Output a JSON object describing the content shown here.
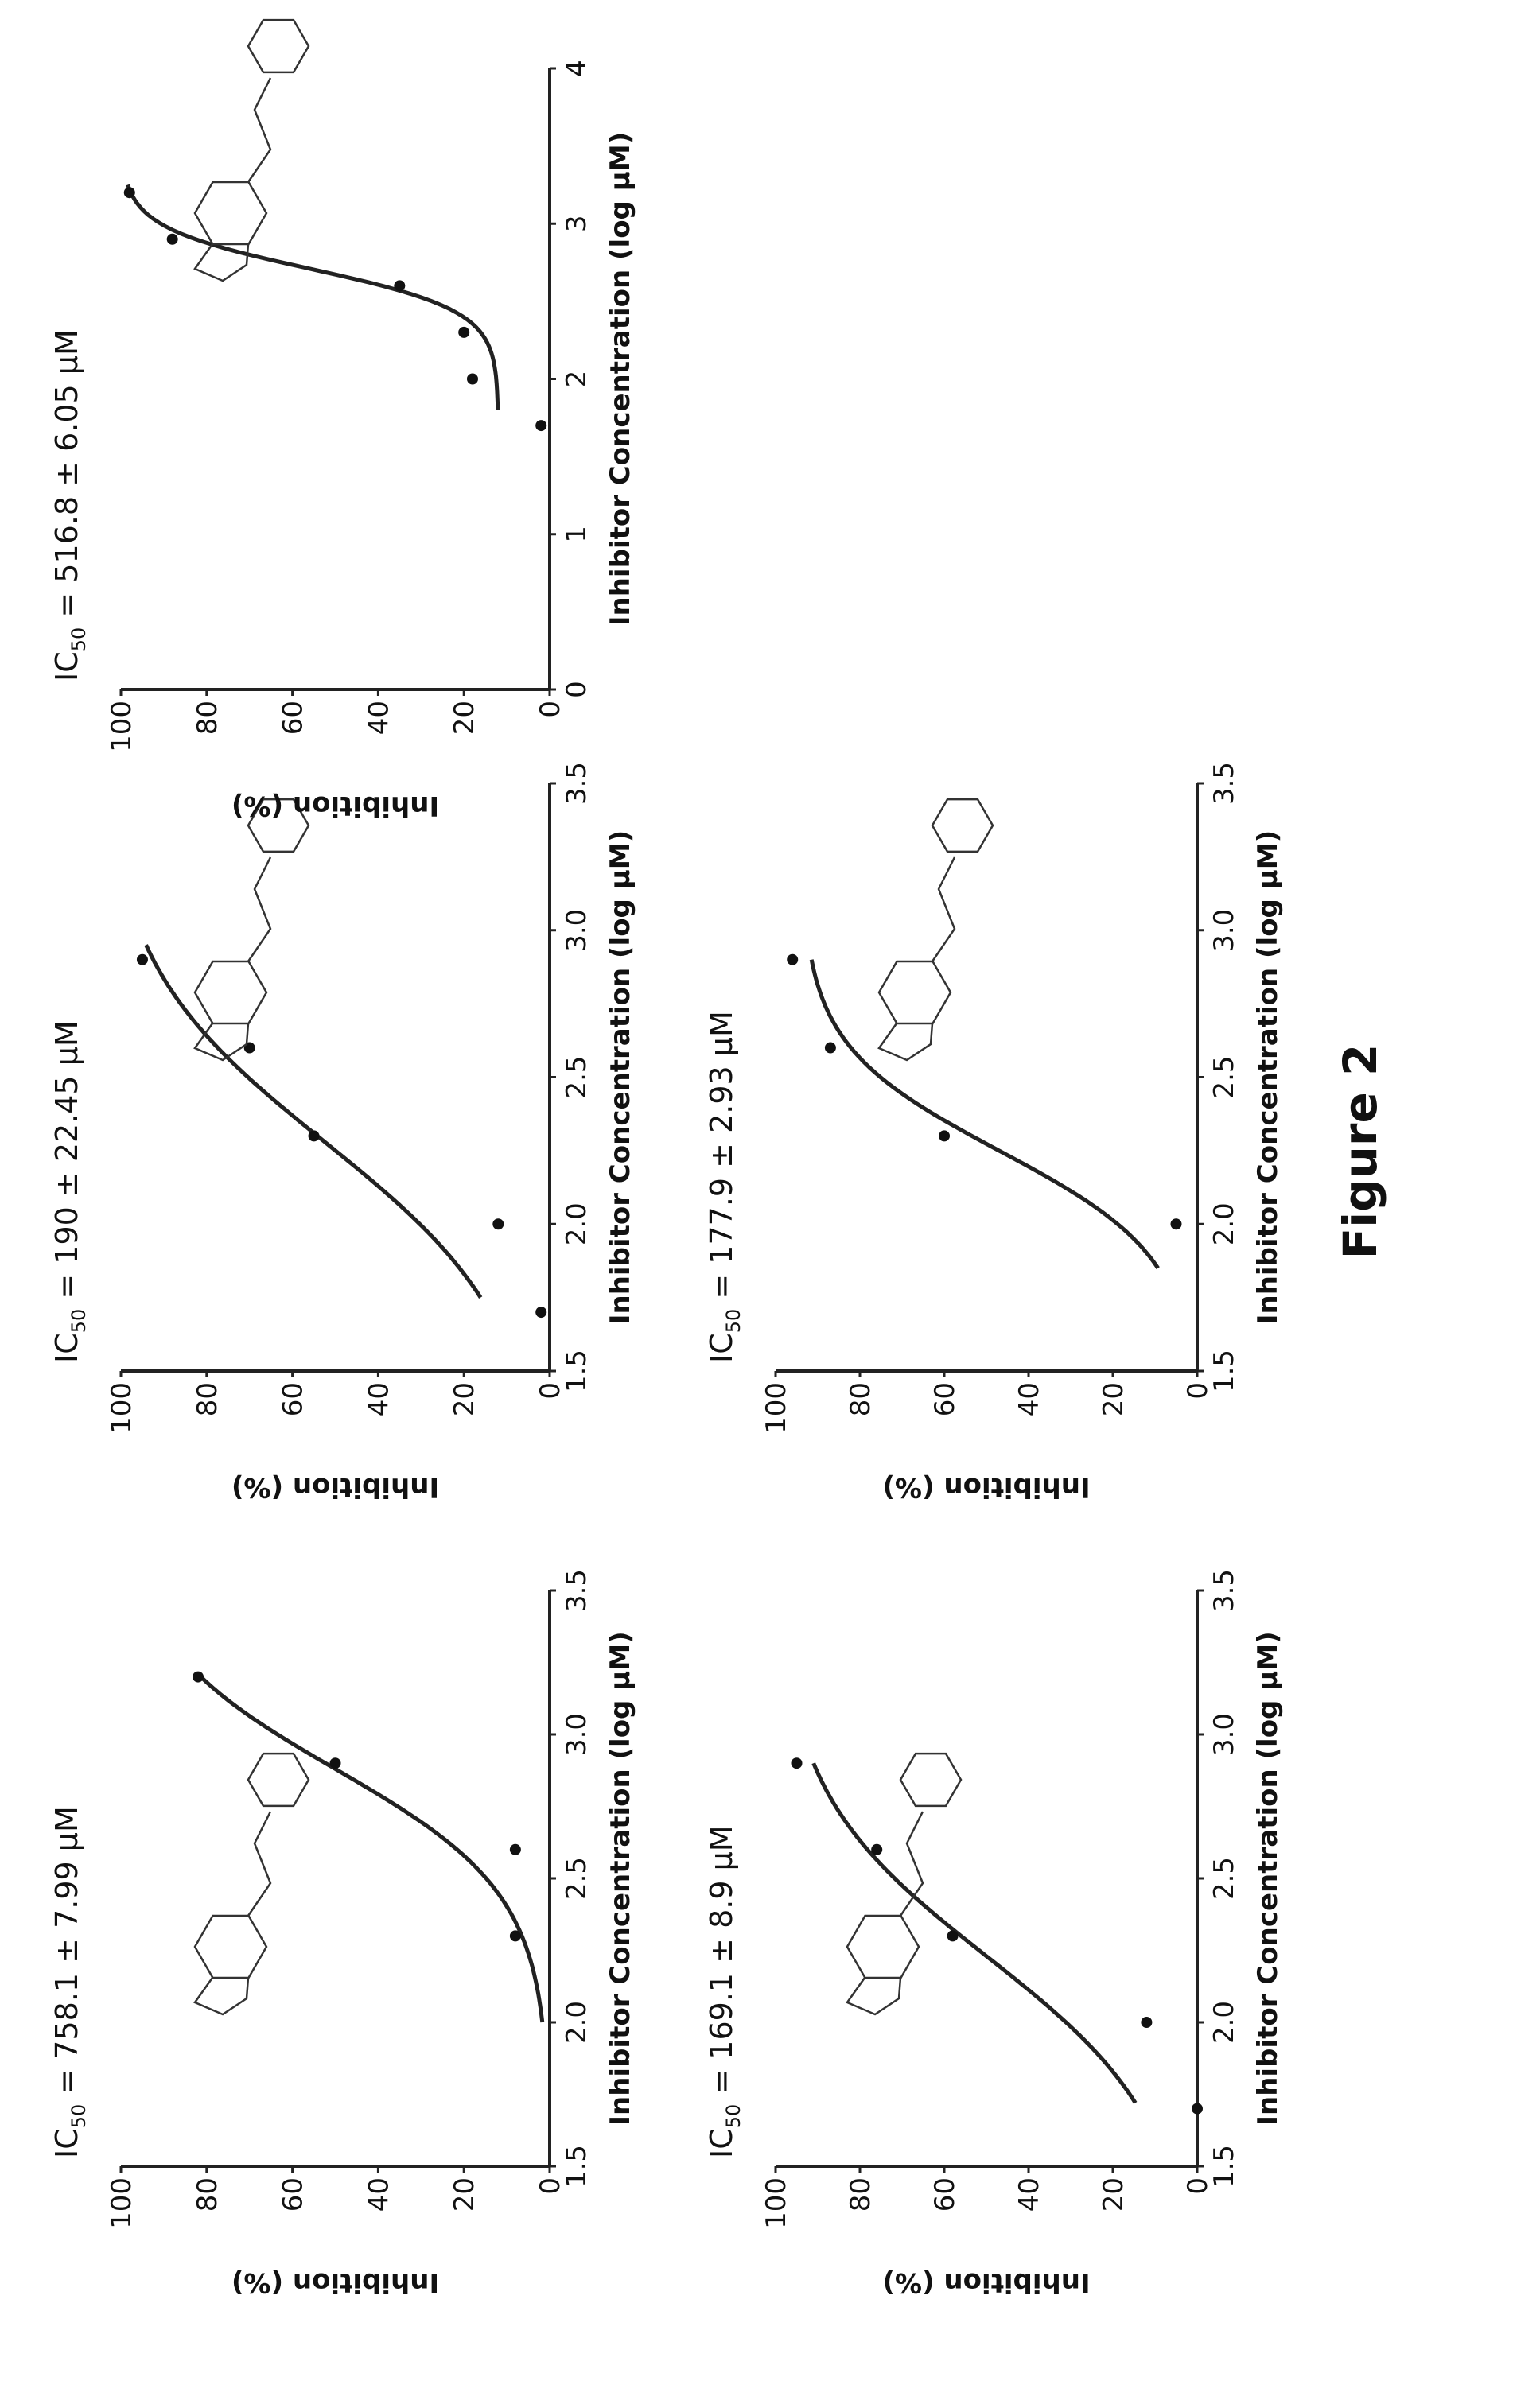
{
  "figure_label": "Figure 2",
  "chart_data": [
    {
      "type": "scatter",
      "title": "IC50 = 758.1 ± 7.99 µM",
      "title_main": "IC",
      "title_sub": "50",
      "title_rest": " = 758.1 ± 7.99 µM",
      "xlabel": "Inhibitor Concentration (log µM)",
      "ylabel": "Inhibition (%)",
      "xlim": [
        1.5,
        3.5
      ],
      "ylim": [
        0,
        100
      ],
      "xticks": [
        "1.5",
        "2.0",
        "2.5",
        "3.0",
        "3.5"
      ],
      "yticks": [
        "0",
        "20",
        "40",
        "60",
        "80",
        "100"
      ],
      "x": [
        2.3,
        2.6,
        2.9,
        3.2
      ],
      "y": [
        8,
        8,
        50,
        82
      ],
      "fit": {
        "log_ic50": 2.88,
        "hill": 2.0,
        "top": 100,
        "range": [
          2.0,
          3.2
        ]
      }
    },
    {
      "type": "scatter",
      "title": "IC50 = 190 ± 22.45 µM",
      "title_main": "IC",
      "title_sub": "50",
      "title_rest": " = 190 ± 22.45 µM",
      "xlabel": "Inhibitor Concentration (log µM)",
      "ylabel": "Inhibition (%)",
      "xlim": [
        1.5,
        3.5
      ],
      "ylim": [
        0,
        100
      ],
      "xticks": [
        "1.5",
        "2.0",
        "2.5",
        "3.0",
        "3.5"
      ],
      "yticks": [
        "0",
        "20",
        "40",
        "60",
        "80",
        "100"
      ],
      "x": [
        1.7,
        2.0,
        2.3,
        2.6,
        2.9
      ],
      "y": [
        2,
        12,
        55,
        70,
        95
      ],
      "fit": {
        "log_ic50": 2.28,
        "hill": 1.4,
        "top": 105,
        "range": [
          1.75,
          2.95
        ]
      }
    },
    {
      "type": "scatter",
      "title": "IC50 = 516.8 ± 6.05 µM",
      "title_main": "IC",
      "title_sub": "50",
      "title_rest": " = 516.8 ± 6.05 µM",
      "xlabel": "Inhibitor Concentration (log µM)",
      "ylabel": "Inhibition (%)",
      "xlim": [
        0,
        4
      ],
      "ylim": [
        0,
        100
      ],
      "xticks": [
        "0",
        "1",
        "2",
        "3",
        "4"
      ],
      "yticks": [
        "0",
        "20",
        "40",
        "60",
        "80",
        "100"
      ],
      "x": [
        1.7,
        2.0,
        2.3,
        2.6,
        2.9,
        3.2
      ],
      "y": [
        2,
        18,
        20,
        35,
        88,
        98
      ],
      "fit": {
        "log_ic50": 2.71,
        "hill": 3.2,
        "top": 100,
        "range": [
          1.8,
          3.25
        ],
        "bottom": 12
      }
    },
    {
      "type": "scatter",
      "title": "IC50 = 169.1 ± 8.9 µM",
      "title_main": "IC",
      "title_sub": "50",
      "title_rest": " = 169.1 ± 8.9 µM",
      "xlabel": "Inhibitor Concentration (log µM)",
      "ylabel": "Inhibition (%)",
      "xlim": [
        1.5,
        3.5
      ],
      "ylim": [
        0,
        100
      ],
      "xticks": [
        "1.5",
        "2.0",
        "2.5",
        "3.0",
        "3.5"
      ],
      "yticks": [
        "0",
        "20",
        "40",
        "60",
        "80",
        "100"
      ],
      "x": [
        1.7,
        2.0,
        2.3,
        2.6,
        2.9
      ],
      "y": [
        0,
        12,
        58,
        76,
        95
      ],
      "fit": {
        "log_ic50": 2.23,
        "hill": 1.5,
        "top": 100,
        "range": [
          1.72,
          2.9
        ]
      }
    },
    {
      "type": "scatter",
      "title": "IC50 = 177.9 ± 2.93 µM",
      "title_main": "IC",
      "title_sub": "50",
      "title_rest": " = 177.9 ± 2.93 µM",
      "xlabel": "Inhibitor Concentration (log µM)",
      "ylabel": "Inhibition (%)",
      "xlim": [
        1.5,
        3.5
      ],
      "ylim": [
        0,
        100
      ],
      "xticks": [
        "1.5",
        "2.0",
        "2.5",
        "3.0",
        "3.5"
      ],
      "yticks": [
        "0",
        "20",
        "40",
        "60",
        "80",
        "100"
      ],
      "x": [
        2.0,
        2.3,
        2.6,
        2.9
      ],
      "y": [
        5,
        60,
        87,
        96
      ],
      "fit": {
        "log_ic50": 2.25,
        "hill": 2.4,
        "top": 94,
        "range": [
          1.85,
          2.9
        ]
      }
    }
  ]
}
